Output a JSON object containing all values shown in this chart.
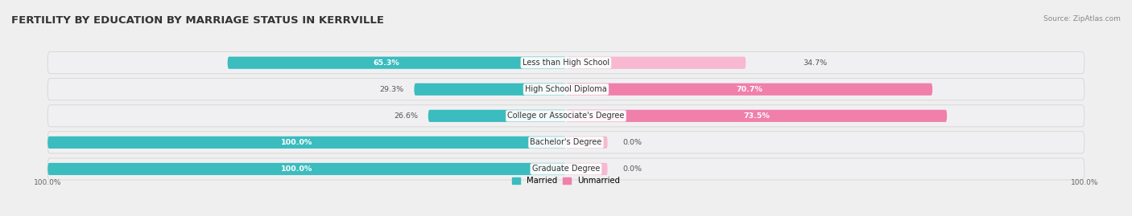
{
  "title": "FERTILITY BY EDUCATION BY MARRIAGE STATUS IN KERRVILLE",
  "source": "Source: ZipAtlas.com",
  "categories": [
    "Less than High School",
    "High School Diploma",
    "College or Associate's Degree",
    "Bachelor's Degree",
    "Graduate Degree"
  ],
  "married_pct": [
    65.3,
    29.3,
    26.6,
    100.0,
    100.0
  ],
  "unmarried_pct": [
    34.7,
    70.7,
    73.5,
    0.0,
    0.0
  ],
  "married_color": "#3bbcbe",
  "unmarried_color": "#f07faa",
  "unmarried_light_color": "#f7b8d0",
  "bg_color": "#efefef",
  "row_bg_color": "#e8e8e8",
  "bar_bg_color": "#f8f8f8",
  "title_fontsize": 9.5,
  "label_fontsize": 7.2,
  "x_left_label": "100.0%",
  "x_right_label": "100.0%"
}
